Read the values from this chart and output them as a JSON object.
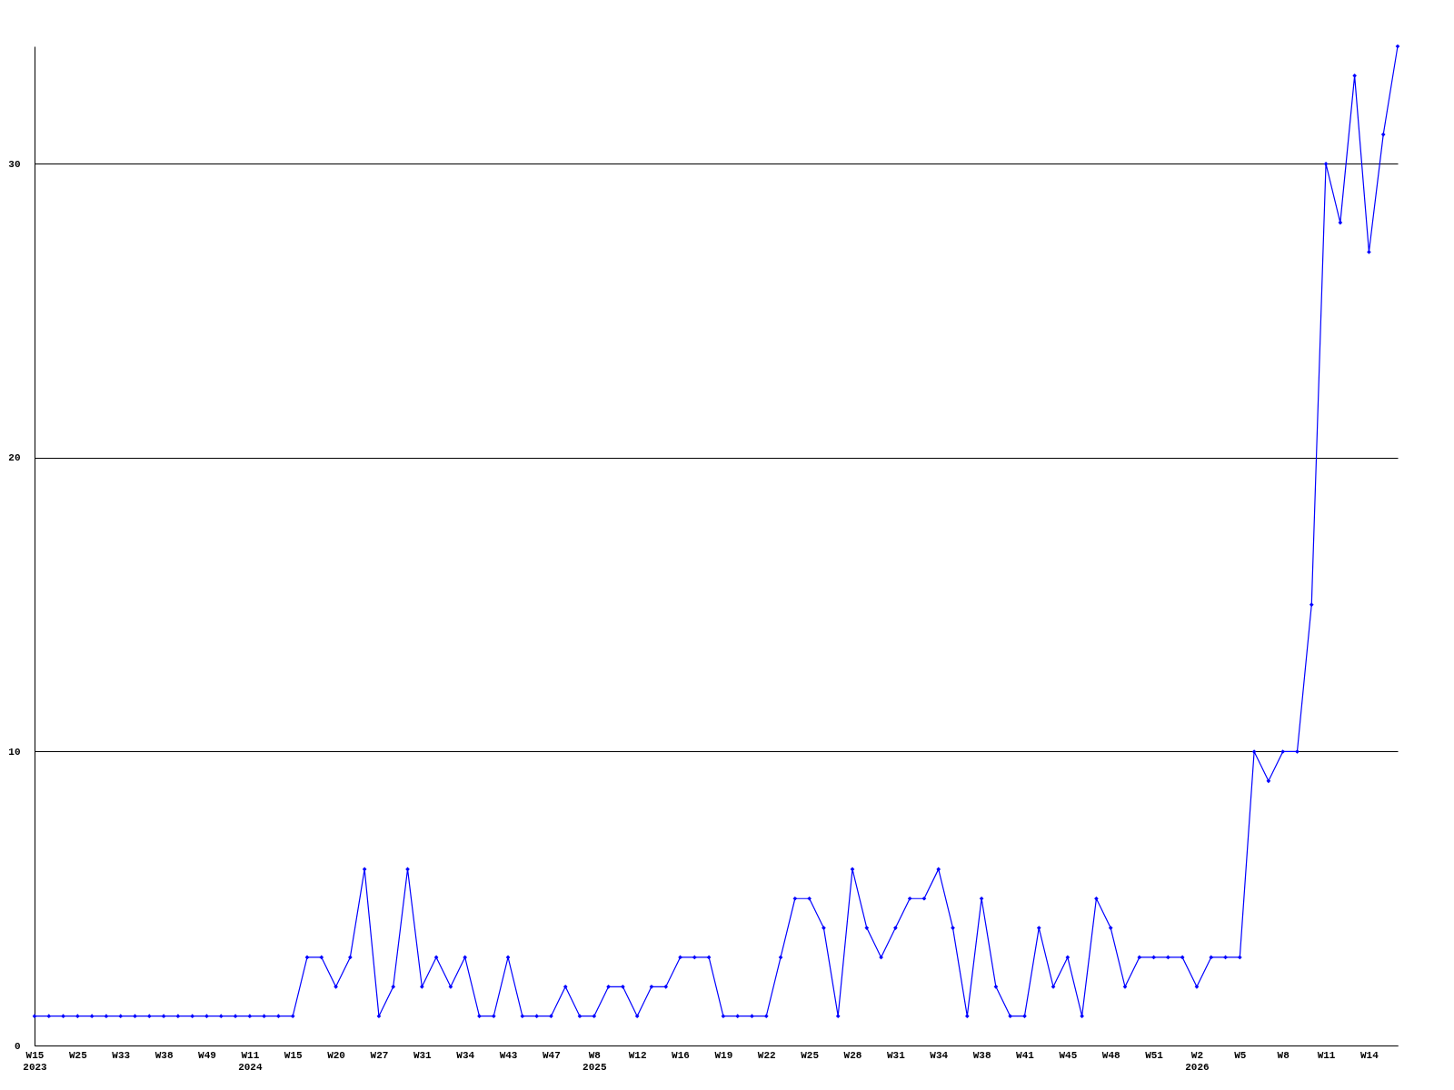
{
  "chart_data": {
    "type": "line",
    "categories": [
      "W15\n2023",
      null,
      null,
      "W25",
      null,
      null,
      "W33",
      null,
      null,
      "W38",
      null,
      null,
      "W49",
      null,
      null,
      "W11\n2024",
      null,
      null,
      "W15",
      null,
      null,
      "W20",
      null,
      null,
      "W27",
      null,
      null,
      "W31",
      null,
      null,
      "W34",
      null,
      null,
      "W43",
      null,
      null,
      "W47",
      null,
      null,
      "W8\n2025",
      null,
      null,
      "W12",
      null,
      null,
      "W16",
      null,
      null,
      "W19",
      null,
      null,
      "W22",
      null,
      null,
      "W25",
      null,
      null,
      "W28",
      null,
      null,
      "W31",
      null,
      null,
      "W34",
      null,
      null,
      "W38",
      null,
      null,
      "W41",
      null,
      null,
      "W45",
      null,
      null,
      "W48",
      null,
      null,
      "W51",
      null,
      null,
      "W2\n2026",
      null,
      null,
      "W5",
      null,
      null,
      "W8",
      null,
      null,
      "W11",
      null,
      null,
      "W14",
      null,
      null
    ],
    "series": [
      {
        "color": "#0000ff",
        "values": [
          1,
          1,
          1,
          1,
          1,
          1,
          1,
          1,
          1,
          1,
          1,
          1,
          1,
          1,
          1,
          1,
          1,
          1,
          1,
          3,
          3,
          2,
          3,
          6,
          1,
          2,
          6,
          2,
          3,
          2,
          3,
          1,
          1,
          3,
          1,
          1,
          1,
          2,
          1,
          1,
          2,
          2,
          1,
          2,
          2,
          3,
          3,
          3,
          1,
          1,
          1,
          1,
          3,
          5,
          5,
          4,
          1,
          6,
          4,
          3,
          4,
          5,
          5,
          6,
          4,
          1,
          5,
          2,
          1,
          1,
          4,
          2,
          3,
          1,
          5,
          4,
          2,
          3,
          3,
          3,
          3,
          2,
          3,
          3,
          3,
          10,
          9,
          10,
          10,
          15,
          30,
          28,
          33,
          27,
          31,
          34
        ]
      }
    ],
    "ylim": [
      0,
      34
    ],
    "yticks": [
      0,
      10,
      20,
      30
    ],
    "grid": "y",
    "marker": "diamond",
    "line_style": "solid"
  }
}
